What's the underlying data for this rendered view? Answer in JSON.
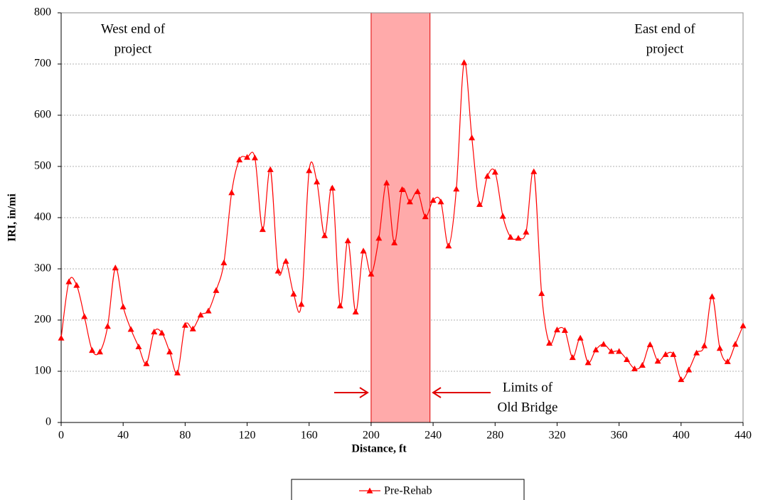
{
  "chart_data": {
    "type": "line",
    "xlabel": "Distance, ft",
    "ylabel": "IRI, in/mi",
    "xlim": [
      0,
      440
    ],
    "xticks": [
      0,
      40,
      80,
      120,
      160,
      200,
      240,
      280,
      320,
      360,
      400,
      440
    ],
    "ylim": [
      0,
      800
    ],
    "yticks": [
      0,
      100,
      200,
      300,
      400,
      500,
      600,
      700,
      800
    ],
    "grid": true,
    "legend": "bottom",
    "highlight": {
      "xlim": [
        200,
        238
      ],
      "color": "#ffaaaa",
      "edge": "#e00000"
    },
    "annotations": [
      {
        "lines": [
          "West end of",
          "project"
        ]
      },
      {
        "lines": [
          "East end of",
          "project"
        ]
      },
      {
        "lines": [
          "Limits of",
          "Old Bridge"
        ]
      }
    ],
    "x": [
      0,
      5,
      10,
      15,
      20,
      25,
      30,
      35,
      40,
      45,
      50,
      55,
      60,
      65,
      70,
      75,
      80,
      85,
      90,
      95,
      100,
      105,
      110,
      115,
      120,
      125,
      130,
      135,
      140,
      145,
      150,
      155,
      160,
      165,
      170,
      175,
      180,
      185,
      190,
      195,
      200,
      205,
      210,
      215,
      220,
      225,
      230,
      235,
      240,
      245,
      250,
      255,
      260,
      265,
      270,
      275,
      280,
      285,
      290,
      295,
      300,
      305,
      310,
      315,
      320,
      325,
      330,
      335,
      340,
      345,
      350,
      355,
      360,
      365,
      370,
      375,
      380,
      385,
      390,
      395,
      400,
      405,
      410,
      415,
      420,
      425,
      430,
      435,
      440
    ],
    "series": [
      {
        "name": "Pre-Rehab",
        "color": "#ff0000",
        "values": [
          165,
          275,
          268,
          207,
          141,
          138,
          188,
          302,
          226,
          182,
          148,
          115,
          177,
          175,
          138,
          97,
          190,
          183,
          210,
          218,
          258,
          312,
          449,
          513,
          518,
          517,
          377,
          494,
          296,
          315,
          251,
          231,
          492,
          470,
          365,
          458,
          228,
          355,
          216,
          335,
          290,
          360,
          468,
          351,
          455,
          431,
          451,
          402,
          434,
          431,
          345,
          456,
          703,
          556,
          426,
          481,
          489,
          403,
          362,
          360,
          372,
          490,
          252,
          155,
          181,
          180,
          127,
          165,
          117,
          142,
          153,
          139,
          139,
          123,
          105,
          112,
          152,
          120,
          133,
          133,
          84,
          103,
          136,
          150,
          246,
          145,
          119,
          153,
          189
        ]
      }
    ]
  }
}
